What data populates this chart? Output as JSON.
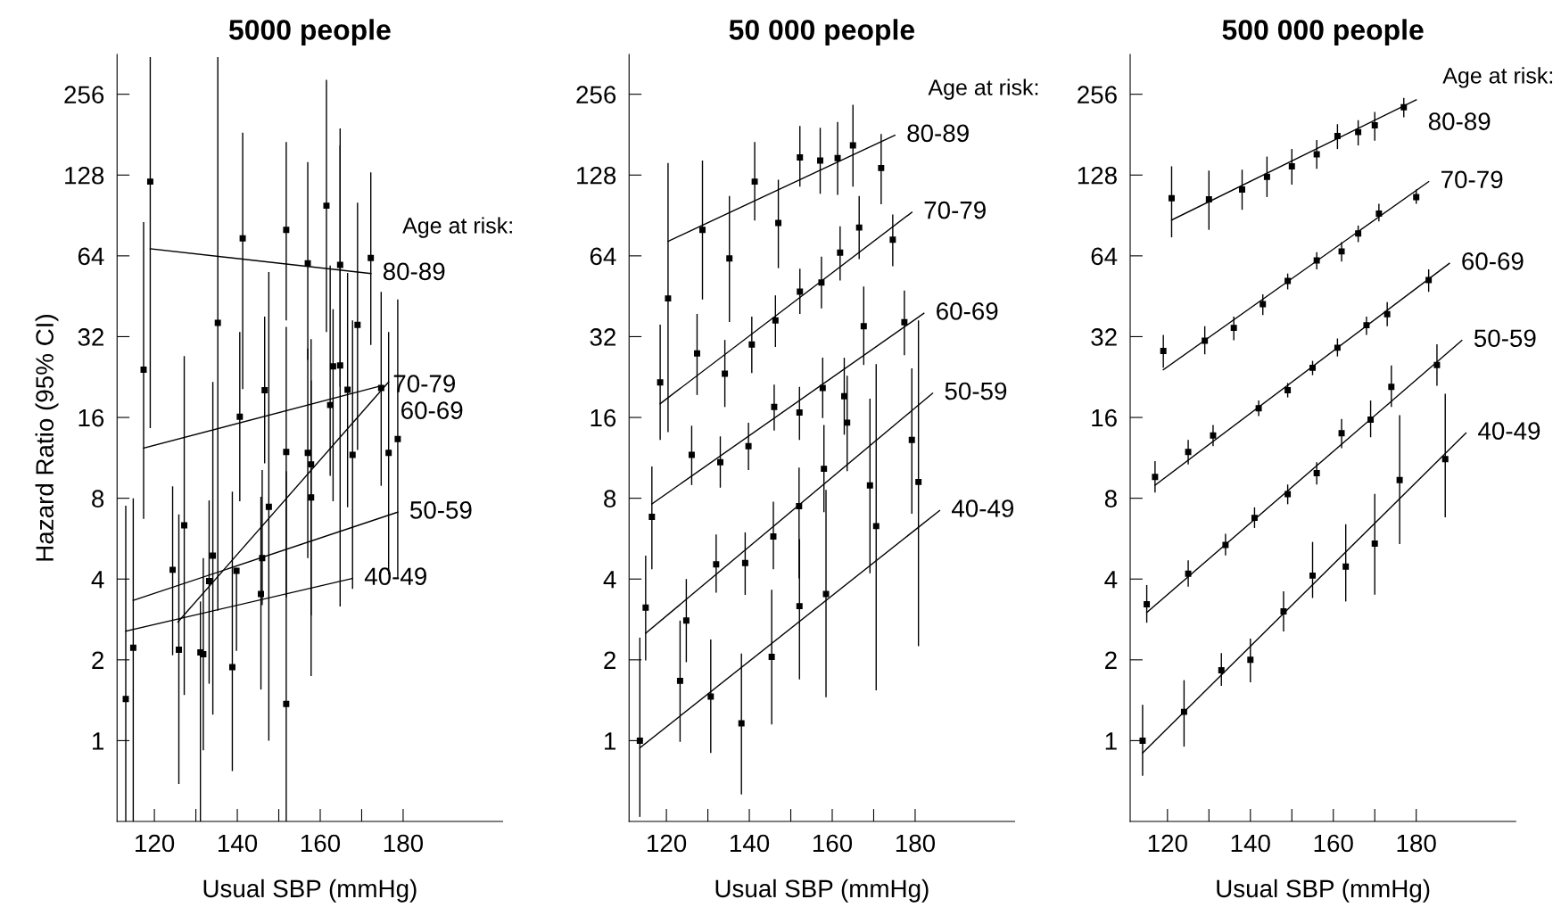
{
  "chart_data": [
    {
      "type": "scatter",
      "title": "5000 people",
      "xlabel": "Usual SBP (mmHg)",
      "ylabel": "Hazard Ratio (95% CI)",
      "log": "y",
      "xlim": [
        111,
        204
      ],
      "ylim": [
        0.5,
        360
      ],
      "xticks": [
        120,
        {
          "value": 130,
          "label": null
        },
        140,
        {
          "value": 150,
          "label": null
        },
        160,
        {
          "value": 170,
          "label": null
        },
        180
      ],
      "yticks": [
        1,
        2,
        4,
        8,
        16,
        32,
        64,
        128,
        256
      ],
      "grid": false,
      "legend": false,
      "annotations": [
        "Age at risk:"
      ],
      "series": [
        {
          "type": "scatter",
          "color": "#000000",
          "marker": "square",
          "x": [
            113.1,
            114.9,
            117.4,
            119,
            124.4,
            125.9,
            127.2,
            131.1,
            131.8,
            133.2,
            134.1,
            135.3,
            138.8,
            139.8,
            140.6,
            141.3,
            145.7,
            146,
            146.6,
            147.6,
            151.8,
            151.8,
            151.8,
            157,
            157,
            157.8,
            157.8,
            161.5,
            162.4,
            163.1,
            164.8,
            164.8,
            166.6,
            167.8,
            169,
            172.2,
            174.7,
            176.5,
            178.7
          ],
          "values": [
            1.43,
            2.22,
            24.1,
            121,
            4.33,
            2.18,
            6.34,
            2.13,
            2.1,
            3.93,
            4.89,
            36,
            1.88,
            4.29,
            16.1,
            74.4,
            3.52,
            4.79,
            20.2,
            7.43,
            11.9,
            80,
            1.37,
            60,
            11.8,
            10.7,
            8.06,
            98.4,
            17.8,
            24.8,
            59.2,
            25,
            20.3,
            11.6,
            35.4,
            62.8,
            20.6,
            11.8,
            13.3
          ],
          "errors": [
            [
              0.5,
              7.5
            ],
            [
              0.5,
              8.0
            ],
            [
              6.7,
              85.5
            ],
            [
              14.6,
              352
            ],
            [
              2.08,
              8.86
            ],
            [
              0.69,
              6.96
            ],
            [
              1.48,
              27.1
            ],
            [
              0.5,
              3.3
            ],
            [
              0.92,
              4.79
            ],
            [
              1.63,
              7.85
            ],
            [
              1.25,
              21.7
            ],
            [
              3.05,
              352
            ],
            [
              0.77,
              8.47
            ],
            [
              2.16,
              4.4
            ],
            [
              7.8,
              33.3
            ],
            [
              20.4,
              184
            ],
            [
              1.55,
              8.1
            ],
            [
              3.2,
              10.2
            ],
            [
              10.8,
              38
            ],
            [
              1.0,
              55.7
            ],
            [
              3.42,
              34.8
            ],
            [
              36.8,
              170
            ],
            [
              0.5,
              10.1
            ],
            [
              26.2,
              143
            ],
            [
              4.79,
              28.9
            ],
            [
              2.93,
              22
            ],
            [
              1.74,
              31.3
            ],
            [
              33.3,
              290
            ],
            [
              9.7,
              58.9
            ],
            [
              7.8,
              40.5
            ],
            [
              20.8,
              191
            ],
            [
              3.16,
              165
            ],
            [
              7.4,
              55.3
            ],
            [
              3.68,
              36.8
            ],
            [
              12.1,
              101
            ],
            [
              29.8,
              131
            ],
            [
              8.9,
              47
            ],
            [
              4.16,
              33.3
            ],
            [
              4.03,
              44
            ]
          ]
        },
        {
          "type": "line",
          "name": "80-89",
          "color": "#000000",
          "x": [
            119,
            172.2
          ],
          "values": [
            68,
            55
          ]
        },
        {
          "type": "line",
          "name": "70-79",
          "color": "#000000",
          "x": [
            117.4,
            174.7
          ],
          "values": [
            12.3,
            21
          ]
        },
        {
          "type": "line",
          "name": "60-69",
          "color": "#000000",
          "x": [
            125.7,
            176.5
          ],
          "values": [
            2.77,
            21.7
          ]
        },
        {
          "type": "line",
          "name": "50-59",
          "color": "#000000",
          "x": [
            114.9,
            178.7
          ],
          "values": [
            3.33,
            7.1
          ]
        },
        {
          "type": "line",
          "name": "40-49",
          "color": "#000000",
          "x": [
            113.1,
            167.8
          ],
          "values": [
            2.56,
            4.02
          ]
        }
      ]
    },
    {
      "type": "scatter",
      "title": "50 000 people",
      "xlabel": "Usual SBP (mmHg)",
      "log": "y",
      "xlim": [
        111,
        204
      ],
      "ylim": [
        0.5,
        360
      ],
      "xticks": [
        120,
        {
          "value": 130,
          "label": null
        },
        140,
        {
          "value": 150,
          "label": null
        },
        160,
        {
          "value": 170,
          "label": null
        },
        180
      ],
      "yticks": [
        1,
        2,
        4,
        8,
        16,
        32,
        64,
        128,
        256
      ],
      "grid": false,
      "legend": false,
      "annotations": [
        "Age at risk:"
      ],
      "series": [
        {
          "color": "#000000",
          "marker": "square",
          "x": [
            120.4,
            128.7,
            135.2,
            141.3,
            147,
            152.2,
            157.1,
            161.3,
            165,
            171.8
          ],
          "values": [
            44.4,
            80,
            62.6,
            121,
            84.8,
            149,
            145,
            148,
            165,
            136
          ],
          "errors": [
            [
              14.1,
              142
            ],
            [
              44,
              145
            ],
            [
              36.3,
              107
            ],
            [
              86.6,
              170
            ],
            [
              57.6,
              123
            ],
            [
              116,
              195
            ],
            [
              109,
              192
            ],
            [
              108,
              202
            ],
            [
              116,
              234
            ],
            [
              99.7,
              182
            ]
          ]
        },
        {
          "color": "#000000",
          "marker": "square",
          "x": [
            118.5,
            127.4,
            134.1,
            140.6,
            146.3,
            152.2,
            157.4,
            161.9,
            166.5,
            174.6
          ],
          "values": [
            21.6,
            27.7,
            23.3,
            29.9,
            36.8,
            47.1,
            50.9,
            65.8,
            81.6,
            73.5
          ],
          "errors": [
            [
              13.2,
              35.5
            ],
            [
              19.4,
              38.9
            ],
            [
              17.5,
              31.1
            ],
            [
              23.4,
              38
            ],
            [
              29.3,
              45.6
            ],
            [
              38.9,
              57.3
            ],
            [
              40.8,
              63.6
            ],
            [
              51.8,
              82.5
            ],
            [
              62.3,
              107
            ],
            [
              58.6,
              91.3
            ]
          ]
        },
        {
          "color": "#000000",
          "marker": "square",
          "x": [
            116.5,
            126.1,
            133,
            139.8,
            146,
            152.1,
            157.7,
            162.9,
            167.6,
            177.4
          ],
          "values": [
            6.82,
            11.6,
            10.9,
            12.5,
            17.5,
            16.7,
            20.6,
            19.2,
            35,
            36.2
          ],
          "errors": [
            [
              4.35,
              10.5
            ],
            [
              8.96,
              14.9
            ],
            [
              8.76,
              13.6
            ],
            [
              10.2,
              15.3
            ],
            [
              14.3,
              21.2
            ],
            [
              13.2,
              20.8
            ],
            [
              15.9,
              26.7
            ],
            [
              13.8,
              26.7
            ],
            [
              25.1,
              49.2
            ],
            [
              27.3,
              47.5
            ]
          ]
        },
        {
          "color": "#000000",
          "marker": "square",
          "x": [
            115,
            124.8,
            132,
            139,
            145.8,
            152,
            158,
            163.6,
            169.1,
            179.2
          ],
          "values": [
            3.13,
            2.8,
            4.54,
            4.59,
            5.76,
            7.48,
            10.3,
            15.3,
            8.93,
            13.2
          ],
          "errors": [
            [
              1.99,
              4.89
            ],
            [
              1.96,
              4
            ],
            [
              3.56,
              5.86
            ],
            [
              3.49,
              5.97
            ],
            [
              4.35,
              7.76
            ],
            [
              4.02,
              10.4
            ],
            [
              7.1,
              15
            ],
            [
              10.1,
              22.9
            ],
            [
              4.2,
              18.8
            ],
            [
              7.0,
              24.4
            ]
          ]
        },
        {
          "color": "#000000",
          "marker": "square",
          "x": [
            113.6,
            123.3,
            130.7,
            138.1,
            145.4,
            152.1,
            158.5,
            170.6,
            180.8
          ],
          "values": [
            1,
            1.67,
            1.46,
            1.16,
            2.05,
            3.17,
            3.52,
            6.3,
            9.2
          ],
          "errors": [
            [
              0.52,
              2.42
            ],
            [
              0.99,
              2.8
            ],
            [
              0.9,
              2.38
            ],
            [
              0.63,
              2.11
            ],
            [
              1.15,
              3.65
            ],
            [
              1.69,
              5.63
            ],
            [
              1.45,
              8.6
            ],
            [
              1.54,
              25.3
            ],
            [
              2.25,
              36.8
            ]
          ]
        },
        {
          "type": "line",
          "name": "80-89",
          "color": "#000000",
          "x": [
            120.4,
            175.1
          ],
          "values": [
            72.5,
            180
          ]
        },
        {
          "type": "line",
          "name": "70-79",
          "color": "#000000",
          "x": [
            118.5,
            179.2
          ],
          "values": [
            18,
            93
          ]
        },
        {
          "type": "line",
          "name": "60-69",
          "color": "#000000",
          "x": [
            116.5,
            182.1
          ],
          "values": [
            7.62,
            39.1
          ]
        },
        {
          "type": "line",
          "name": "50-59",
          "color": "#000000",
          "x": [
            115,
            184.2
          ],
          "values": [
            2.51,
            19.7
          ]
        },
        {
          "type": "line",
          "name": "40-49",
          "color": "#000000",
          "x": [
            113.6,
            185.9
          ],
          "values": [
            0.94,
            7.2
          ]
        }
      ]
    },
    {
      "type": "scatter",
      "title": "500 000 people",
      "xlabel": "Usual SBP (mmHg)",
      "log": "y",
      "xlim": [
        111,
        204
      ],
      "ylim": [
        0.5,
        360
      ],
      "xticks": [
        120,
        {
          "value": 130,
          "label": null
        },
        140,
        {
          "value": 150,
          "label": null
        },
        160,
        {
          "value": 170,
          "label": null
        },
        180
      ],
      "yticks": [
        1,
        2,
        4,
        8,
        16,
        32,
        64,
        128,
        256
      ],
      "grid": false,
      "legend": false,
      "annotations": [
        "Age at risk:"
      ],
      "series": [
        {
          "type": "scatter",
          "color": "#000000",
          "marker": "square",
          "x": [
            121,
            130,
            138,
            144,
            150,
            156,
            161,
            166,
            170,
            177
          ],
          "values": [
            105,
            104,
            113,
            126,
            138,
            153,
            179,
            185,
            196,
            229
          ],
          "errors": [
            [
              75,
              138
            ],
            [
              80,
              133
            ],
            [
              95,
              134
            ],
            [
              106,
              150
            ],
            [
              118,
              160
            ],
            [
              135,
              173
            ],
            [
              160,
              198
            ],
            [
              165,
              205
            ],
            [
              172,
              220
            ],
            [
              210,
              248
            ]
          ]
        },
        {
          "color": "#000000",
          "marker": "square",
          "x": [
            119,
            129,
            136,
            143,
            149,
            156,
            162,
            166,
            171,
            180
          ],
          "values": [
            28.3,
            30.9,
            34.5,
            42.3,
            51.6,
            61.5,
            66.5,
            77.6,
            92,
            106
          ],
          "errors": [
            [
              24.5,
              32.5
            ],
            [
              27.5,
              35
            ],
            [
              31,
              38
            ],
            [
              38.5,
              46
            ],
            [
              48,
              55
            ],
            [
              57,
              66
            ],
            [
              61,
              72
            ],
            [
              72,
              83
            ],
            [
              86,
              100
            ],
            [
              100,
              113
            ]
          ]
        },
        {
          "color": "#000000",
          "marker": "square",
          "x": [
            117,
            125,
            131,
            142,
            149,
            155,
            161,
            168,
            173,
            183
          ],
          "values": [
            9.6,
            11.9,
            13.7,
            17.3,
            20.2,
            24.5,
            29.1,
            35.3,
            38.8,
            52
          ],
          "errors": [
            [
              8.4,
              11
            ],
            [
              10.7,
              13.2
            ],
            [
              12.5,
              15
            ],
            [
              16.2,
              18.5
            ],
            [
              19,
              21.5
            ],
            [
              23,
              26
            ],
            [
              27,
              31.5
            ],
            [
              32.5,
              38
            ],
            [
              35,
              43
            ],
            [
              47,
              57
            ]
          ]
        },
        {
          "color": "#000000",
          "marker": "square",
          "x": [
            115,
            125,
            134,
            141,
            149,
            156,
            162,
            169,
            174,
            185
          ],
          "values": [
            3.22,
            4.19,
            5.36,
            6.76,
            8.29,
            9.92,
            13.97,
            15.7,
            20.8,
            25.1
          ],
          "errors": [
            [
              2.75,
              3.8
            ],
            [
              3.75,
              4.7
            ],
            [
              4.9,
              5.9
            ],
            [
              6.2,
              7.4
            ],
            [
              7.6,
              9
            ],
            [
              9,
              10.9
            ],
            [
              12.3,
              15.8
            ],
            [
              13.5,
              18.5
            ],
            [
              17.5,
              25
            ],
            [
              21,
              30
            ]
          ]
        },
        {
          "color": "#000000",
          "marker": "square",
          "x": [
            114,
            124,
            133,
            140,
            148,
            155,
            163,
            170,
            176,
            187
          ],
          "values": [
            1.0,
            1.28,
            1.83,
            2.0,
            3.03,
            4.12,
            4.45,
            5.42,
            9.35,
            11.2
          ],
          "errors": [
            [
              0.74,
              1.36
            ],
            [
              0.95,
              1.68
            ],
            [
              1.6,
              2.12
            ],
            [
              1.65,
              2.4
            ],
            [
              2.55,
              3.6
            ],
            [
              3.4,
              5.5
            ],
            [
              3.3,
              6.4
            ],
            [
              3.5,
              8.3
            ],
            [
              5.4,
              16.3
            ],
            [
              6.8,
              19.6
            ]
          ]
        },
        {
          "type": "line",
          "name": "80-89",
          "color": "#000000",
          "x": [
            121,
            180
          ],
          "values": [
            87,
            244
          ]
        },
        {
          "type": "line",
          "name": "70-79",
          "color": "#000000",
          "x": [
            119,
            183
          ],
          "values": [
            24.1,
            121
          ]
        },
        {
          "type": "line",
          "name": "60-69",
          "color": "#000000",
          "x": [
            117,
            188
          ],
          "values": [
            8.95,
            60
          ]
        },
        {
          "type": "line",
          "name": "50-59",
          "color": "#000000",
          "x": [
            115,
            191
          ],
          "values": [
            3.0,
            31
          ]
        },
        {
          "type": "line",
          "name": "40-49",
          "color": "#000000",
          "x": [
            114,
            192
          ],
          "values": [
            0.9,
            14
          ]
        }
      ]
    }
  ]
}
